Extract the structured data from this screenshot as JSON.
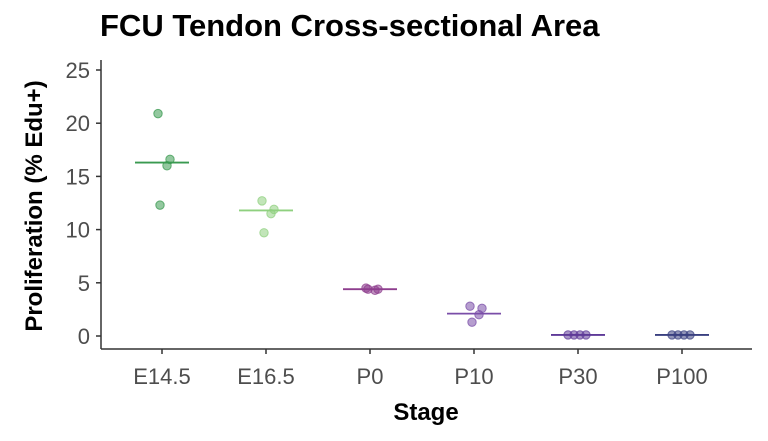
{
  "chart_data": {
    "type": "scatter",
    "title": "FCU Tendon Cross-sectional Area",
    "xlabel": "Stage",
    "ylabel": "Proliferation (% Edu+)",
    "categories": [
      "E14.5",
      "E16.5",
      "P0",
      "P10",
      "P30",
      "P100"
    ],
    "yticks": [
      0,
      5,
      10,
      15,
      20,
      25
    ],
    "ylim": [
      -1,
      26
    ],
    "grid": false,
    "legend": "none",
    "colors": [
      "#3a9a50",
      "#8fd07f",
      "#8e3e8e",
      "#7a4ea8",
      "#5e3a98",
      "#3a4080"
    ],
    "series": [
      {
        "category": "E14.5",
        "mean": 16.3,
        "points": [
          20.9,
          16.6,
          16.0,
          12.3
        ]
      },
      {
        "category": "E16.5",
        "mean": 11.8,
        "points": [
          12.7,
          11.9,
          11.5,
          9.7
        ]
      },
      {
        "category": "P0",
        "mean": 4.4,
        "points": [
          4.5,
          4.4,
          4.3,
          4.4
        ]
      },
      {
        "category": "P10",
        "mean": 2.1,
        "points": [
          2.8,
          2.6,
          2.0,
          1.3
        ]
      },
      {
        "category": "P30",
        "mean": 0.1,
        "points": [
          0.1,
          0.1,
          0.1,
          0.1
        ]
      },
      {
        "category": "P100",
        "mean": 0.1,
        "points": [
          0.1,
          0.1,
          0.1,
          0.1
        ]
      }
    ]
  }
}
